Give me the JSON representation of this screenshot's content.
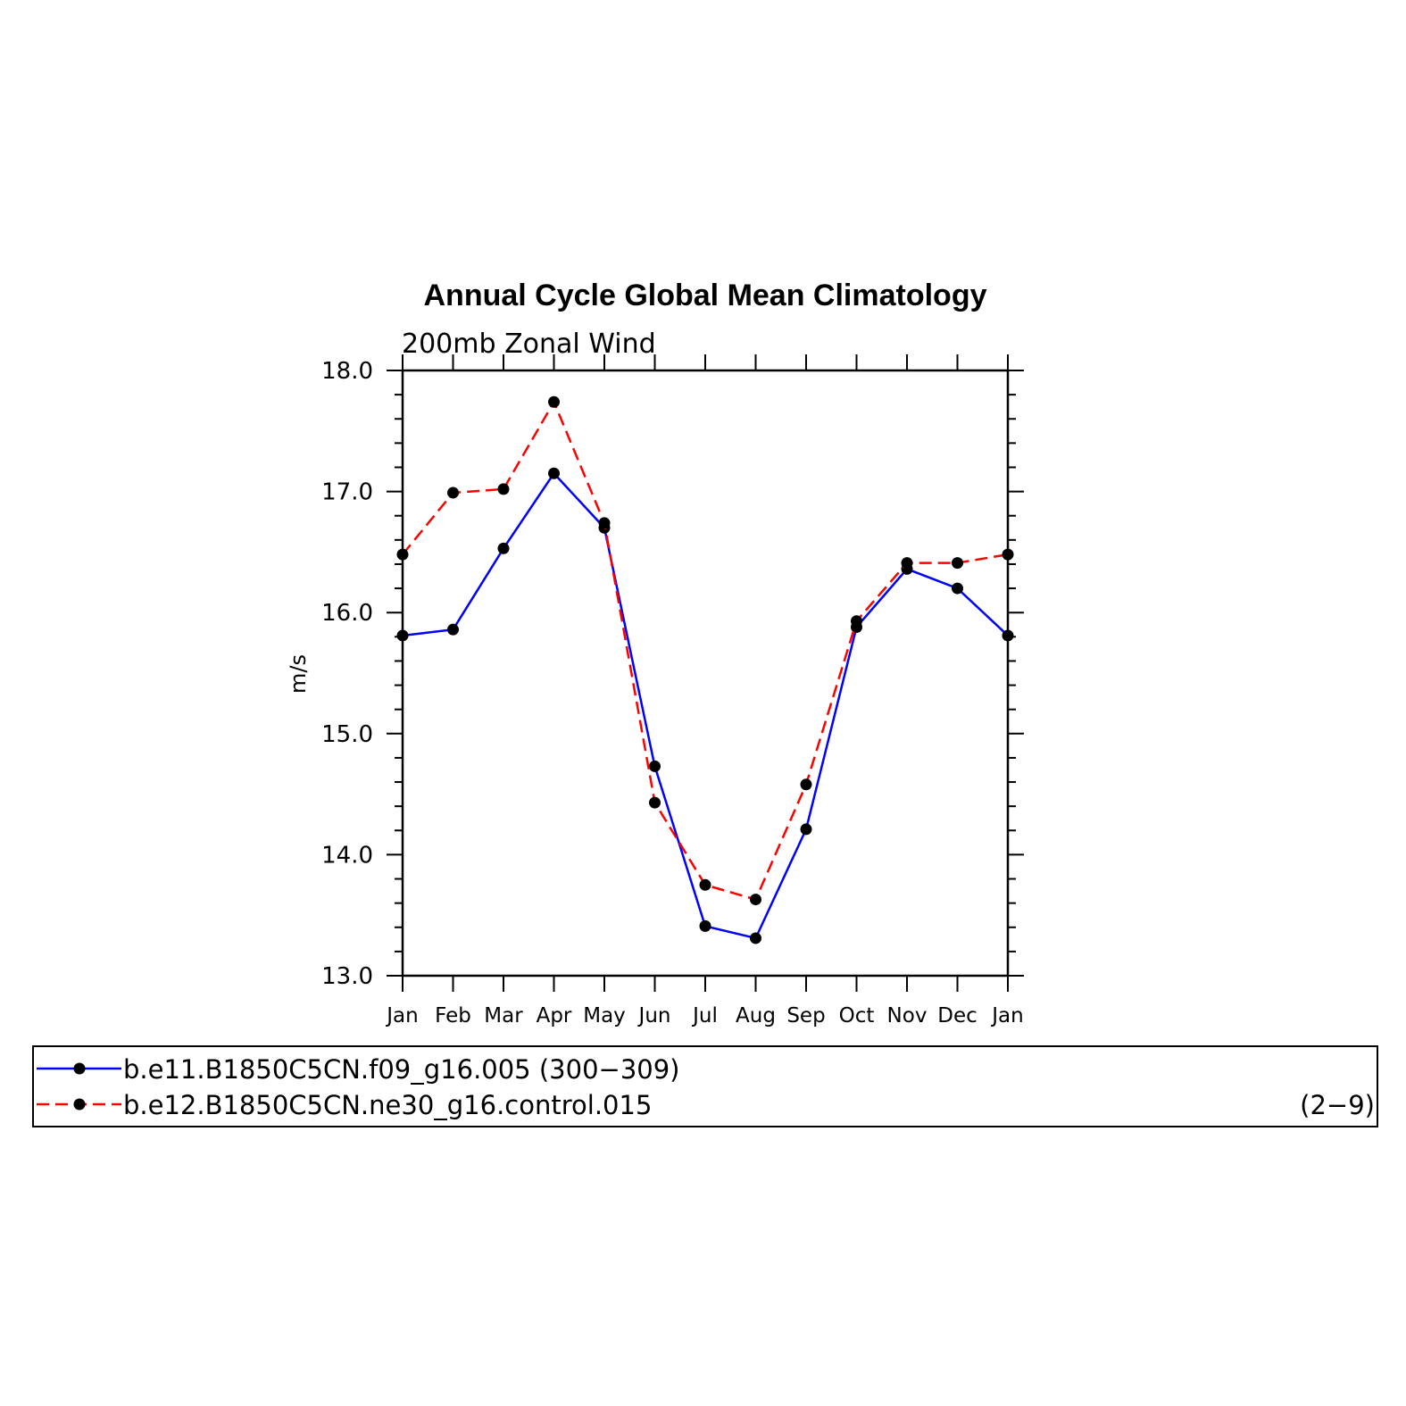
{
  "chart_data": {
    "type": "line",
    "title": "Annual Cycle Global Mean Climatology",
    "subtitle": "200mb Zonal Wind",
    "xlabel": "",
    "ylabel": "m/s",
    "ylim": [
      13.0,
      18.0
    ],
    "yticks": [
      "13.0",
      "14.0",
      "15.0",
      "16.0",
      "17.0",
      "18.0"
    ],
    "categories": [
      "Jan",
      "Feb",
      "Mar",
      "Apr",
      "May",
      "Jun",
      "Jul",
      "Aug",
      "Sep",
      "Oct",
      "Nov",
      "Dec",
      "Jan"
    ],
    "grid": false,
    "legend_position": "bottom",
    "series": [
      {
        "name": "b.e11.B1850C5CN.f09_g16.005 (300−309)",
        "range_label": "",
        "color": "#0000ff",
        "dash": "solid",
        "values": [
          15.81,
          15.86,
          16.53,
          17.15,
          16.7,
          14.73,
          13.41,
          13.31,
          14.21,
          15.88,
          16.36,
          16.2,
          15.81
        ]
      },
      {
        "name": "b.e12.B1850C5CN.ne30_g16.control.015",
        "range_label": "(2−9)",
        "color": "#ff0000",
        "dash": "dashed",
        "values": [
          16.48,
          16.99,
          17.02,
          17.74,
          16.74,
          14.43,
          13.75,
          13.63,
          14.58,
          15.93,
          16.41,
          16.41,
          16.48
        ]
      }
    ]
  }
}
